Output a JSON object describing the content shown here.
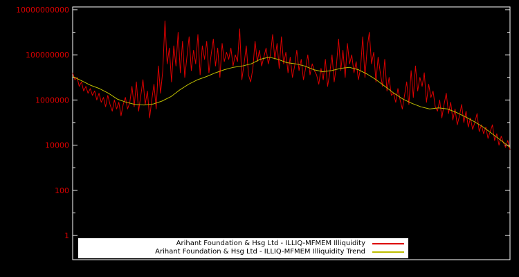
{
  "chart_data": {
    "type": "line",
    "title": "",
    "xlabel": "",
    "ylabel": "",
    "scale": "log",
    "grid": false,
    "legend_position": "bottom-center",
    "background_color": "#000000",
    "border_color": "#ffffff",
    "ylim": [
      1,
      10000000000
    ],
    "y_axis": {
      "color": "#dd0000",
      "ticks": [
        {
          "value": 1,
          "label": "1"
        },
        {
          "value": 100,
          "label": "100"
        },
        {
          "value": 10000,
          "label": "10000"
        },
        {
          "value": 1000000,
          "label": "1000000"
        },
        {
          "value": 100000000,
          "label": "100000000"
        },
        {
          "value": 10000000000,
          "label": "10000000000"
        }
      ]
    },
    "x_axis": {
      "labels_visible": false
    },
    "series": [
      {
        "name": "Arihant Foundation & Hsg Ltd - ILLIQ-MFMEM Illiquidity",
        "color": "#dd0000",
        "data_name": "illiquidity-series-line",
        "values": [
          16000000.0,
          7900000.0,
          10000000.0,
          4000000.0,
          6300000.0,
          2500000.0,
          4000000.0,
          2000000.0,
          3200000.0,
          1600000.0,
          2500000.0,
          1000000.0,
          2000000.0,
          790000.0,
          1300000.0,
          500000.0,
          1600000.0,
          630000.0,
          320000.0,
          1000000.0,
          400000.0,
          790000.0,
          200000.0,
          630000.0,
          1300000.0,
          400000.0,
          790000.0,
          4000000.0,
          500000.0,
          6300000.0,
          320000.0,
          1600000.0,
          7900000.0,
          630000.0,
          2500000.0,
          160000.0,
          1000000.0,
          5000000.0,
          400000.0,
          32000000.0,
          2000000.0,
          20000000.0,
          3200000000.0,
          40000000.0,
          200000000.0,
          6300000.0,
          250000000.0,
          32000000.0,
          1000000000.0,
          16000000.0,
          400000000.0,
          10000000.0,
          79000000.0,
          630000000.0,
          20000000.0,
          160000000.0,
          40000000.0,
          790000000.0,
          13000000.0,
          250000000.0,
          63000000.0,
          400000000.0,
          16000000.0,
          100000000.0,
          500000000.0,
          32000000.0,
          200000000.0,
          10000000.0,
          320000000.0,
          50000000.0,
          130000000.0,
          63000000.0,
          200000000.0,
          32000000.0,
          100000000.0,
          50000000.0,
          1400000000.0,
          7900000.0,
          40000000.0,
          250000000.0,
          13000000.0,
          6300000.0,
          25000000.0,
          400000000.0,
          50000000.0,
          160000000.0,
          32000000.0,
          79000000.0,
          200000000.0,
          40000000.0,
          100000000.0,
          790000000.0,
          63000000.0,
          320000000.0,
          25000000.0,
          630000000.0,
          40000000.0,
          130000000.0,
          16000000.0,
          79000000.0,
          10000000.0,
          32000000.0,
          160000000.0,
          20000000.0,
          63000000.0,
          7900000.0,
          25000000.0,
          100000000.0,
          13000000.0,
          40000000.0,
          20000000.0,
          13000000.0,
          5000000.0,
          25000000.0,
          7900000.0,
          63000000.0,
          4000000.0,
          16000000.0,
          100000000.0,
          6300000.0,
          32000000.0,
          500000000.0,
          20000000.0,
          160000000.0,
          10000000.0,
          320000000.0,
          40000000.0,
          100000000.0,
          16000000.0,
          50000000.0,
          7900000.0,
          25000000.0,
          630000000.0,
          10000000.0,
          200000000.0,
          1000000000.0,
          40000000.0,
          130000000.0,
          6300000.0,
          79000000.0,
          16000000.0,
          4000000.0,
          63000000.0,
          2500000.0,
          10000000.0,
          1600000.0,
          2000000.0,
          790000.0,
          3200000.0,
          1000000.0,
          400000.0,
          1600000.0,
          6300000.0,
          630000.0,
          20000000.0,
          1300000.0,
          32000000.0,
          2500000.0,
          10000000.0,
          4000000.0,
          16000000.0,
          790000.0,
          5000000.0,
          1300000.0,
          2500000.0,
          500000.0,
          320000.0,
          1000000.0,
          160000.0,
          630000.0,
          2000000.0,
          250000.0,
          790000.0,
          130000.0,
          400000.0,
          79000.0,
          200000.0,
          630000.0,
          100000.0,
          320000.0,
          63000.0,
          160000.0,
          50000.0,
          100000.0,
          250000.0,
          40000.0,
          79000.0,
          32000.0,
          63000.0,
          20000.0,
          40000.0,
          79000.0,
          16000.0,
          32000.0,
          10000.0,
          25000.0,
          13000.0,
          7900.0,
          16000.0,
          6300.0
        ]
      },
      {
        "name": "Arihant Foundation & Hsg Ltd - ILLIQ-MFMEM Illiquidity Trend",
        "color": "#bdbd00",
        "data_name": "illiquidity-trend-line",
        "values": [
          11000000.0,
          7100000.0,
          4500000.0,
          3200000.0,
          2000000.0,
          1100000.0,
          790000.0,
          630000.0,
          600000.0,
          660000.0,
          890000.0,
          1400000.0,
          2800000.0,
          5000000.0,
          7900000.0,
          11000000.0,
          16000000.0,
          22000000.0,
          28000000.0,
          32000000.0,
          40000000.0,
          63000000.0,
          79000000.0,
          63000000.0,
          45000000.0,
          40000000.0,
          32000000.0,
          22000000.0,
          18000000.0,
          20000000.0,
          25000000.0,
          28000000.0,
          22000000.0,
          14000000.0,
          7900000.0,
          4000000.0,
          2000000.0,
          1100000.0,
          710000.0,
          500000.0,
          400000.0,
          450000.0,
          400000.0,
          280000.0,
          180000.0,
          110000.0,
          63000.0,
          32000.0,
          16000.0,
          7900.0
        ]
      }
    ]
  }
}
